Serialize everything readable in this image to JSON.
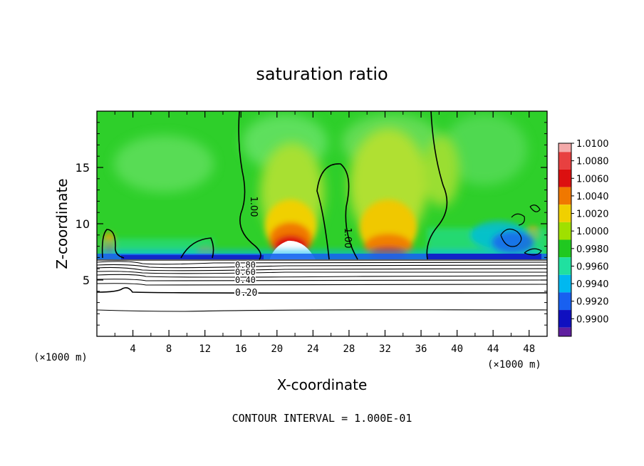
{
  "chart_data": {
    "type": "heatmap",
    "title": "saturation ratio",
    "xlabel": "X-coordinate",
    "ylabel": "Z-coordinate",
    "x_unit_label_left": "(×1000 m)",
    "x_unit_label_right": "(×1000 m)",
    "footer": "CONTOUR INTERVAL = 1.000E-01",
    "xlim": [
      0,
      50
    ],
    "ylim": [
      0,
      20
    ],
    "x_ticks": [
      4,
      8,
      12,
      16,
      20,
      24,
      28,
      32,
      36,
      40,
      44,
      48
    ],
    "y_ticks": [
      5,
      10,
      15
    ],
    "colorbar": {
      "levels": [
        "1.0100",
        "1.0080",
        "1.0060",
        "1.0040",
        "1.0020",
        "1.0000",
        "0.9980",
        "0.9960",
        "0.9940",
        "0.9920",
        "0.9900"
      ],
      "colors": [
        "#f4aaaa",
        "#e84040",
        "#dc1010",
        "#f07800",
        "#f0d000",
        "#a0e000",
        "#20c820",
        "#20e0a0",
        "#00b8f0",
        "#1860f0",
        "#1010c0",
        "#6020a0"
      ]
    },
    "contour_labels": [
      {
        "text": "1.00",
        "x": 17.0,
        "z": 11.7
      },
      {
        "text": "1.00",
        "x": 28.2,
        "z": 8.8
      },
      {
        "text": "0.80",
        "x": 17.2,
        "z": 6.4
      },
      {
        "text": "0.60",
        "x": 17.2,
        "z": 5.95
      },
      {
        "text": "0.40",
        "x": 17.2,
        "z": 5.3
      },
      {
        "text": "0.20",
        "x": 17.2,
        "z": 4.0
      }
    ],
    "contour_line_levels_below_cloud_base_z": [
      6.8,
      6.5,
      6.2,
      5.9,
      5.6,
      5.3,
      4.9,
      4.0,
      2.5
    ],
    "cloud_base_z": 7.0
  }
}
